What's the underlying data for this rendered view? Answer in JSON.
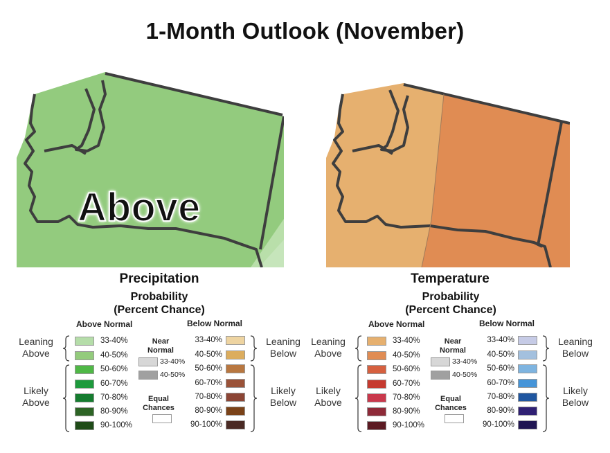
{
  "title": "1-Month Outlook (November)",
  "colors": {
    "precip_base": "#93cb7e",
    "precip_light": "#b9dfaa",
    "temp_leaning": "#e6b06f",
    "temp_likely": "#e08c53",
    "state_border": "#3e3e3e"
  },
  "precipitation": {
    "section_title": "Precipitation",
    "map_label": "Above",
    "prob_title_1": "Probability",
    "prob_title_2": "(Percent Chance)",
    "above_head": "Above Normal",
    "below_head": "Below Normal",
    "above": [
      {
        "range": "33-40%",
        "color": "#b5dda9"
      },
      {
        "range": "40-50%",
        "color": "#93cb7c"
      },
      {
        "range": "50-60%",
        "color": "#4fb846"
      },
      {
        "range": "60-70%",
        "color": "#1d9a3c"
      },
      {
        "range": "70-80%",
        "color": "#157c2f"
      },
      {
        "range": "80-90%",
        "color": "#2d6425"
      },
      {
        "range": "90-100%",
        "color": "#1f4b18"
      }
    ],
    "below": [
      {
        "range": "33-40%",
        "color": "#eed4a1"
      },
      {
        "range": "40-50%",
        "color": "#dcad5e"
      },
      {
        "range": "50-60%",
        "color": "#b87740"
      },
      {
        "range": "60-70%",
        "color": "#9a5238"
      },
      {
        "range": "70-80%",
        "color": "#8c4535"
      },
      {
        "range": "80-90%",
        "color": "#7a4218"
      },
      {
        "range": "90-100%",
        "color": "#4a2a24"
      }
    ],
    "near_normal_1": "Near",
    "near_normal_2": "Normal",
    "near": [
      {
        "range": "33-40%",
        "color": "#d7d7d7"
      },
      {
        "range": "40-50%",
        "color": "#a0a0a0"
      }
    ],
    "equal_1": "Equal",
    "equal_2": "Chances",
    "equal_color": "#ffffff",
    "leaning_above_1": "Leaning",
    "leaning_above_2": "Above",
    "likely_above_1": "Likely",
    "likely_above_2": "Above",
    "leaning_below_1": "Leaning",
    "leaning_below_2": "Below",
    "likely_below_1": "Likely",
    "likely_below_2": "Below"
  },
  "temperature": {
    "section_title": "Temperature",
    "prob_title_1": "Probability",
    "prob_title_2": "(Percent Chance)",
    "above_head": "Above Normal",
    "below_head": "Below Normal",
    "above": [
      {
        "range": "33-40%",
        "color": "#e6b06f"
      },
      {
        "range": "40-50%",
        "color": "#e08c53"
      },
      {
        "range": "50-60%",
        "color": "#d6603f"
      },
      {
        "range": "60-70%",
        "color": "#c63a2f"
      },
      {
        "range": "70-80%",
        "color": "#c9384c"
      },
      {
        "range": "80-90%",
        "color": "#8e2a38"
      },
      {
        "range": "90-100%",
        "color": "#5b1a22"
      }
    ],
    "below": [
      {
        "range": "33-40%",
        "color": "#c6cbe6"
      },
      {
        "range": "40-50%",
        "color": "#a3c0de"
      },
      {
        "range": "50-60%",
        "color": "#7eb4e0"
      },
      {
        "range": "60-70%",
        "color": "#4594d8"
      },
      {
        "range": "70-80%",
        "color": "#1f56a0"
      },
      {
        "range": "80-90%",
        "color": "#2f2073"
      },
      {
        "range": "90-100%",
        "color": "#201552"
      }
    ],
    "near_normal_1": "Near",
    "near_normal_2": "Normal",
    "near": [
      {
        "range": "33-40%",
        "color": "#d7d7d7"
      },
      {
        "range": "40-50%",
        "color": "#a0a0a0"
      }
    ],
    "equal_1": "Equal",
    "equal_2": "Chances",
    "equal_color": "#ffffff",
    "leaning_above_1": "Leaning",
    "leaning_above_2": "Above",
    "likely_above_1": "Likely",
    "likely_above_2": "Above",
    "leaning_below_1": "Leaning",
    "leaning_below_2": "Below",
    "likely_below_1": "Likely",
    "likely_below_2": "Below"
  }
}
